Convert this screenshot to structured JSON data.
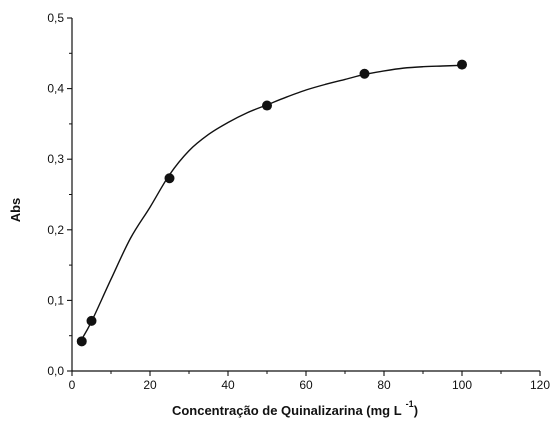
{
  "chart_data": {
    "type": "scatter",
    "title": "",
    "xlabel": "Concentração de Quinalizarina (mg L",
    "xlabel_superscript": "-1",
    "xlabel_suffix": ")",
    "ylabel": "Abs",
    "xlim": [
      0,
      120
    ],
    "ylim": [
      0.0,
      0.5
    ],
    "x_ticks": [
      0,
      20,
      40,
      60,
      80,
      100,
      120
    ],
    "y_ticks": [
      0.0,
      0.1,
      0.2,
      0.3,
      0.4,
      0.5
    ],
    "x_tick_labels": [
      "0",
      "20",
      "40",
      "60",
      "80",
      "100",
      "120"
    ],
    "y_tick_labels": [
      "0,0",
      "0,1",
      "0,2",
      "0,3",
      "0,4",
      "0,5"
    ],
    "grid": false,
    "legend": "none",
    "series": [
      {
        "style": "markers",
        "x": [
          2.5,
          5,
          25,
          50,
          75,
          100
        ],
        "y": [
          0.042,
          0.071,
          0.273,
          0.376,
          0.421,
          0.434
        ]
      },
      {
        "style": "line",
        "x": [
          2.5,
          5,
          10,
          15,
          20,
          25,
          30,
          35,
          40,
          45,
          50,
          55,
          60,
          65,
          70,
          75,
          80,
          85,
          90,
          95,
          100
        ],
        "y": [
          0.045,
          0.07,
          0.13,
          0.188,
          0.232,
          0.278,
          0.312,
          0.335,
          0.352,
          0.366,
          0.377,
          0.388,
          0.398,
          0.406,
          0.413,
          0.42,
          0.425,
          0.429,
          0.431,
          0.432,
          0.433
        ]
      }
    ],
    "colors": {
      "axis": "#111111",
      "line": "#111111",
      "marker": "#111111"
    }
  }
}
